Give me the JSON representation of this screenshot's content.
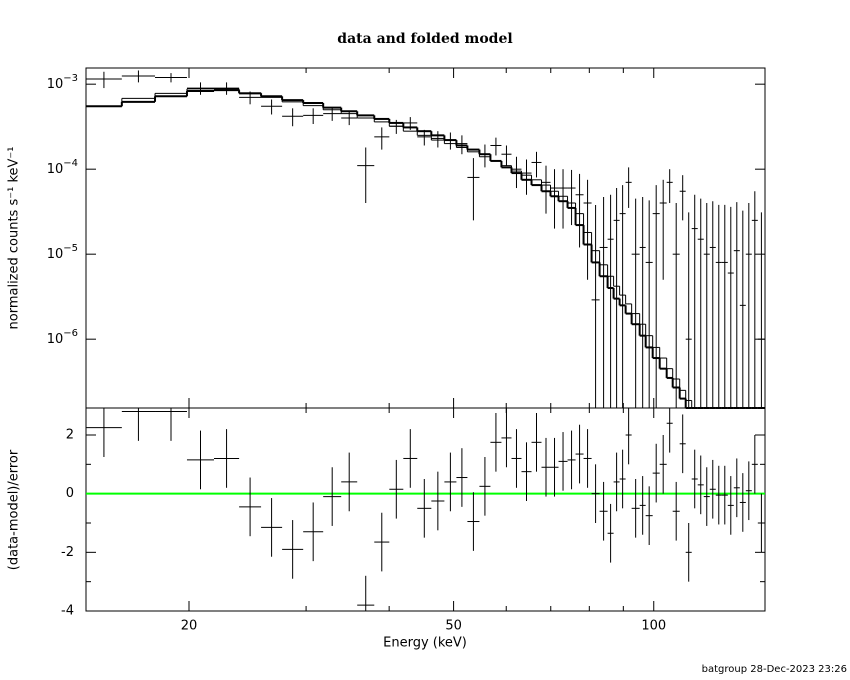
{
  "chart_data": {
    "type": "spectrum",
    "title": "data and folded model",
    "xlabel": "Energy (keV)",
    "log_x": true,
    "xlim": [
      14,
      147
    ],
    "xticks": [
      20,
      50,
      100
    ],
    "xminor": [
      30,
      40,
      60,
      70,
      80,
      90
    ],
    "bin_edges": [
      14.0,
      15.85,
      17.78,
      19.86,
      21.81,
      23.79,
      25.67,
      27.61,
      29.7,
      31.83,
      33.88,
      35.81,
      37.99,
      40.02,
      42.01,
      44.09,
      46.29,
      48.43,
      50.49,
      52.45,
      54.68,
      56.8,
      59.01,
      61.1,
      63.25,
      65.49,
      67.79,
      69.94,
      71.91,
      74.19,
      76.28,
      78.42,
      80.63,
      82.9,
      85.23,
      87.02,
      88.85,
      90.72,
      92.63,
      95.24,
      97.24,
      99.63,
      102.08,
      104.58,
      106.78,
      109.4,
      111.7,
      114.05,
      116.45,
      118.91,
      121.41,
      123.96,
      126.57,
      129.23,
      131.94,
      134.72,
      137.55,
      140.44,
      143.39,
      147
    ],
    "panels": [
      {
        "ylabel": "normalized counts s⁻¹ keV⁻¹",
        "log_y": true,
        "ylim": [
          1.55e-07,
          0.00155
        ],
        "yticks": [
          {
            "value": 0.001,
            "label": "10−3"
          },
          {
            "value": 0.0001,
            "label": "10−4"
          },
          {
            "value": 1e-05,
            "label": "10−5"
          },
          {
            "value": 1e-06,
            "label": "10−6"
          }
        ],
        "color": "#000000",
        "values": [
          0.00115,
          0.00125,
          0.0012,
          0.0009,
          0.0009,
          0.0007,
          0.00055,
          0.00042,
          0.00043,
          0.00045,
          0.0004,
          0.00011,
          0.00024,
          0.00032,
          0.00035,
          0.00024,
          0.00023,
          0.00022,
          0.0002,
          8e-05,
          0.00015,
          0.00019,
          0.00015,
          0.0001,
          9e-05,
          0.00012,
          7e-05,
          6e-05,
          6e-05,
          6e-05,
          5e-05,
          4e-05,
          2.9e-06,
          1.2e-05,
          1.5e-05,
          2.5e-05,
          3e-05,
          7e-05,
          1e-05,
          1.2e-05,
          8e-06,
          3e-05,
          4e-05,
          7e-05,
          1e-05,
          5.5e-05,
          1e-06,
          2e-05,
          1.5e-05,
          1e-05,
          1.2e-05,
          8e-06,
          8e-06,
          6e-06,
          1.1e-05,
          2.5e-06,
          1e-05,
          2.5e-05,
          1e-06
        ],
        "errors": [
          0.00025,
          0.0002,
          0.00015,
          0.00015,
          0.00015,
          0.00012,
          0.00011,
          0.0001,
          9e-05,
          8e-05,
          7e-05,
          7e-05,
          7e-05,
          6e-05,
          6e-05,
          5e-05,
          5e-05,
          5e-05,
          5e-05,
          5.5e-05,
          4.5e-05,
          4.5e-05,
          4e-05,
          4e-05,
          4e-05,
          4e-05,
          4e-05,
          4e-05,
          4e-05,
          3.8e-05,
          3.8e-05,
          3.5e-05,
          3.5e-05,
          3.5e-05,
          3.5e-05,
          3.5e-05,
          3.5e-05,
          3.5e-05,
          3.5e-05,
          3.5e-05,
          3.5e-05,
          3.5e-05,
          3.5e-05,
          3e-05,
          3e-05,
          3e-05,
          3e-05,
          3e-05,
          3e-05,
          3e-05,
          3e-05,
          3e-05,
          3e-05,
          3e-05,
          3e-05,
          3e-05,
          3e-05,
          3e-05,
          3e-05
        ],
        "models": [
          {
            "color": "#000000",
            "line_width": 2,
            "values": [
              0.00055,
              0.00062,
              0.00072,
              0.00083,
              0.00085,
              0.00078,
              0.00072,
              0.00065,
              0.0006,
              0.00053,
              0.00048,
              0.00043,
              0.00039,
              0.00035,
              0.00031,
              0.00028,
              0.00025,
              0.00022,
              0.00019,
              0.00017,
              0.00015,
              0.000125,
              0.000105,
              9e-05,
              7.5e-05,
              6.5e-05,
              5.5e-05,
              4.8e-05,
              4.2e-05,
              3.5e-05,
              2.2e-05,
              1.3e-05,
              8e-06,
              5.5e-06,
              4e-06,
              3e-06,
              2.5e-06,
              2e-06,
              1.5e-06,
              1.1e-06,
              8e-07,
              6e-07,
              4.5e-07,
              3.5e-07,
              2.7e-07,
              2e-07,
              1.5e-07,
              1e-07,
              1e-07,
              1e-07,
              1e-07,
              1e-07,
              1e-07,
              1e-07,
              1e-07,
              1e-07,
              1e-07,
              1e-07,
              1e-07
            ]
          },
          {
            "color": "#000000",
            "line_width": 1,
            "values": [
              0.00055,
              0.00068,
              0.00078,
              0.00088,
              0.00088,
              0.00079,
              0.0007,
              0.00062,
              0.00056,
              0.0005,
              0.00045,
              0.0004,
              0.00036,
              0.00032,
              0.00028,
              0.00025,
              0.00022,
              0.0002,
              0.00018,
              0.00016,
              0.00014,
              0.000125,
              0.00011,
              9.5e-05,
              8.5e-05,
              7.5e-05,
              6.5e-05,
              5.5e-05,
              4.8e-05,
              4e-05,
              3e-05,
              1.8e-05,
              1.1e-05,
              7.5e-06,
              5.5e-06,
              4.2e-06,
              3.3e-06,
              2.6e-06,
              2e-06,
              1.5e-06,
              1.1e-06,
              8e-07,
              6e-07,
              4.5e-07,
              3.4e-07,
              2.5e-07,
              1.9e-07,
              1.4e-07,
              1e-07,
              1e-07,
              1e-07,
              1e-07,
              1e-07,
              1e-07,
              1e-07,
              1e-07,
              1e-07,
              1e-07,
              1e-07
            ]
          }
        ]
      },
      {
        "ylabel": "(data-model)/error",
        "log_y": false,
        "ylim": [
          -4,
          2.92
        ],
        "yticks": [
          -4,
          -2,
          0,
          2
        ],
        "yminor": [
          -3,
          -1,
          1
        ],
        "color": "#000000",
        "hline": 0,
        "hline_color": "#00ff00",
        "values": [
          2.25,
          2.8,
          2.8,
          1.15,
          1.2,
          -0.45,
          -1.15,
          -1.9,
          -1.3,
          -0.1,
          0.4,
          -3.8,
          -1.65,
          0.15,
          1.2,
          -0.5,
          -0.25,
          0.4,
          0.55,
          -0.95,
          0.25,
          1.75,
          1.9,
          1.2,
          0.75,
          1.75,
          0.9,
          0.9,
          1.1,
          1.15,
          1.35,
          1.2,
          0,
          -0.6,
          -1.35,
          0.4,
          0.5,
          2,
          -0.5,
          -0.4,
          -0.75,
          0.7,
          1,
          2.4,
          -0.6,
          1.7,
          -2,
          0.5,
          0.3,
          -0.1,
          0.15,
          -0.05,
          -0.05,
          -0.4,
          0.2,
          -0.3,
          0.1,
          1,
          -1
        ],
        "errors": [
          1,
          1,
          1,
          1,
          1,
          1,
          1,
          1,
          1,
          1,
          1,
          1,
          1,
          1,
          1,
          1,
          1,
          1,
          1,
          1,
          1,
          1,
          1,
          1,
          1,
          1,
          1,
          1,
          1,
          1,
          1,
          1,
          1,
          1,
          1,
          1,
          1,
          1,
          1,
          1,
          1,
          1,
          1,
          1,
          1,
          1,
          1,
          1,
          1,
          1,
          1,
          1,
          1,
          1,
          1,
          1,
          1,
          1,
          1
        ]
      }
    ]
  },
  "footer": "batgroup 28-Dec-2023 23:26"
}
